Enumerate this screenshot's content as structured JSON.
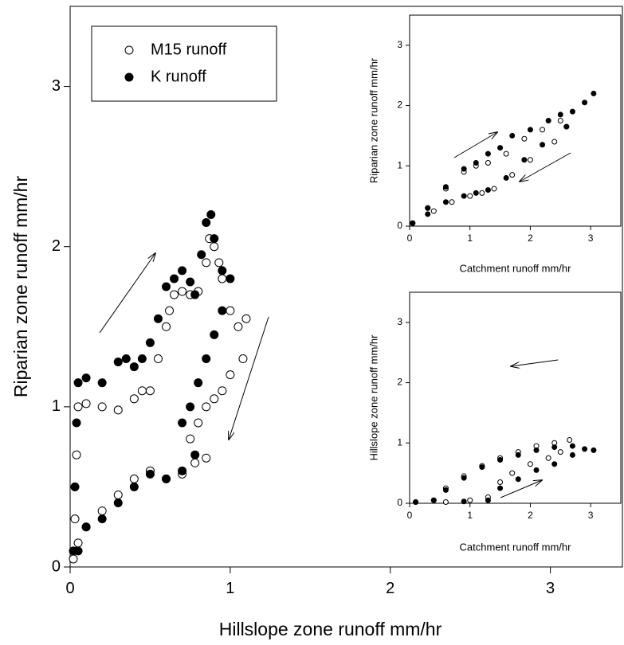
{
  "chart_data": [
    {
      "type": "scatter",
      "xlabel": "Hillslope zone runoff mm/hr",
      "ylabel": "Riparian zone runoff mm/hr",
      "xlim": [
        0,
        3.45
      ],
      "ylim": [
        0,
        3.5
      ],
      "xticks": [
        0,
        1,
        2,
        3
      ],
      "yticks": [
        0,
        1,
        2,
        3
      ],
      "legend": "upper left",
      "series": [
        {
          "name": "M15 runoff",
          "marker": "open",
          "color": "#000000",
          "x": [
            0.02,
            0.03,
            0.04,
            0.05,
            0.1,
            0.2,
            0.3,
            0.4,
            0.45,
            0.5,
            0.55,
            0.6,
            0.62,
            0.65,
            0.7,
            0.75,
            0.8,
            0.85,
            0.87,
            0.9,
            0.93,
            0.95,
            1.0,
            1.05,
            1.1,
            1.08,
            1.0,
            0.95,
            0.9,
            0.85,
            0.8,
            0.75,
            0.78,
            0.85,
            0.7,
            0.6,
            0.5,
            0.4,
            0.3,
            0.2,
            0.1,
            0.05
          ],
          "values": [
            0.05,
            0.3,
            0.7,
            1.0,
            1.02,
            1.0,
            0.98,
            1.05,
            1.1,
            1.1,
            1.3,
            1.5,
            1.6,
            1.7,
            1.72,
            1.7,
            1.72,
            1.9,
            2.05,
            2.0,
            1.9,
            1.8,
            1.6,
            1.5,
            1.55,
            1.3,
            1.2,
            1.1,
            1.05,
            1.0,
            0.9,
            0.8,
            0.65,
            0.68,
            0.58,
            0.55,
            0.6,
            0.55,
            0.45,
            0.35,
            0.25,
            0.15
          ]
        },
        {
          "name": "K runoff",
          "marker": "filled",
          "color": "#000000",
          "x": [
            0.02,
            0.03,
            0.04,
            0.05,
            0.1,
            0.2,
            0.3,
            0.35,
            0.4,
            0.45,
            0.5,
            0.55,
            0.6,
            0.65,
            0.7,
            0.75,
            0.78,
            0.82,
            0.85,
            0.88,
            0.9,
            0.95,
            1.0,
            0.95,
            0.9,
            0.85,
            0.8,
            0.75,
            0.7,
            0.78,
            0.7,
            0.6,
            0.5,
            0.4,
            0.3,
            0.2,
            0.1,
            0.05
          ],
          "values": [
            0.1,
            0.5,
            0.9,
            1.15,
            1.18,
            1.15,
            1.28,
            1.3,
            1.25,
            1.3,
            1.4,
            1.55,
            1.75,
            1.8,
            1.85,
            1.78,
            1.7,
            1.95,
            2.15,
            2.2,
            2.05,
            1.85,
            1.8,
            1.6,
            1.45,
            1.3,
            1.15,
            1.0,
            0.9,
            0.7,
            0.6,
            0.55,
            0.58,
            0.5,
            0.4,
            0.3,
            0.25,
            0.1
          ]
        }
      ]
    },
    {
      "type": "scatter",
      "xlabel": "Catchment runoff mm/hr",
      "ylabel": "Riparian zone runoff mm/hr",
      "xlim": [
        0,
        3.5
      ],
      "ylim": [
        0,
        3.5
      ],
      "xticks": [
        0,
        1,
        2,
        3
      ],
      "yticks": [
        0,
        1,
        2,
        3
      ],
      "series": [
        {
          "marker": "open",
          "color": "#000000",
          "x": [
            0.05,
            0.3,
            0.6,
            0.9,
            1.1,
            1.3,
            1.6,
            1.9,
            2.2,
            2.5,
            2.6,
            2.4,
            2.0,
            1.7,
            1.4,
            1.2,
            1.0,
            0.7,
            0.4
          ],
          "values": [
            0.05,
            0.3,
            0.62,
            0.9,
            1.0,
            1.05,
            1.2,
            1.45,
            1.6,
            1.75,
            1.65,
            1.4,
            1.1,
            0.85,
            0.62,
            0.55,
            0.5,
            0.4,
            0.25
          ]
        },
        {
          "marker": "filled",
          "color": "#000000",
          "x": [
            0.05,
            0.3,
            0.6,
            0.9,
            1.1,
            1.3,
            1.5,
            1.7,
            2.0,
            2.3,
            2.5,
            2.7,
            2.9,
            3.05,
            2.6,
            2.2,
            1.9,
            1.6,
            1.3,
            1.1,
            0.9,
            0.6,
            0.3
          ],
          "values": [
            0.05,
            0.3,
            0.65,
            0.95,
            1.05,
            1.2,
            1.3,
            1.5,
            1.6,
            1.75,
            1.85,
            1.9,
            2.05,
            2.2,
            1.65,
            1.35,
            1.1,
            0.8,
            0.6,
            0.55,
            0.5,
            0.4,
            0.2
          ]
        }
      ]
    },
    {
      "type": "scatter",
      "xlabel": "Catchment runoff mm/hr",
      "ylabel": "Hillslope zone runoff mm/hr",
      "xlim": [
        0,
        3.5
      ],
      "ylim": [
        0,
        3.5
      ],
      "xticks": [
        0,
        1,
        2,
        3
      ],
      "yticks": [
        0,
        1,
        2,
        3
      ],
      "series": [
        {
          "marker": "open",
          "color": "#000000",
          "x": [
            0.1,
            0.4,
            0.6,
            0.9,
            1.2,
            1.5,
            1.8,
            2.1,
            2.4,
            2.65,
            2.5,
            2.3,
            2.0,
            1.7,
            1.5,
            1.3,
            1.0,
            0.6
          ],
          "values": [
            0.02,
            0.05,
            0.25,
            0.45,
            0.62,
            0.75,
            0.85,
            0.95,
            1.0,
            1.05,
            0.85,
            0.75,
            0.65,
            0.5,
            0.35,
            0.1,
            0.05,
            0.02
          ]
        },
        {
          "marker": "filled",
          "color": "#000000",
          "x": [
            0.1,
            0.4,
            0.6,
            0.9,
            1.2,
            1.5,
            1.8,
            2.1,
            2.4,
            2.7,
            2.9,
            3.05,
            2.7,
            2.4,
            2.1,
            1.8,
            1.5,
            1.3,
            0.9
          ],
          "values": [
            0.02,
            0.05,
            0.22,
            0.42,
            0.6,
            0.72,
            0.8,
            0.88,
            0.93,
            0.95,
            0.9,
            0.88,
            0.8,
            0.65,
            0.55,
            0.4,
            0.25,
            0.05,
            0.03
          ]
        }
      ]
    }
  ]
}
